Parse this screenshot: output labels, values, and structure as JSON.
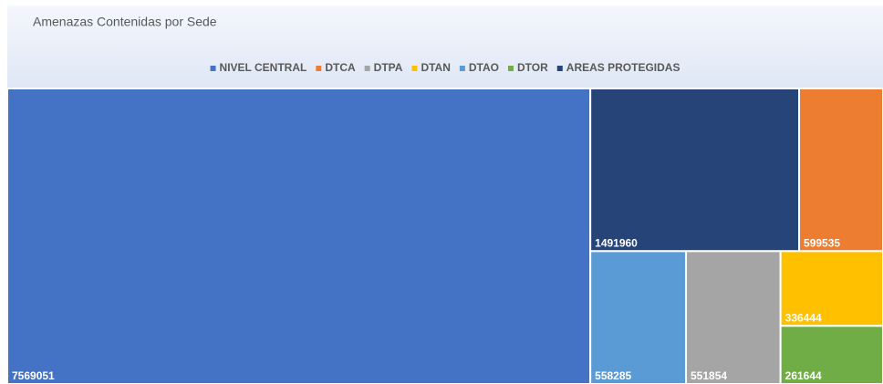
{
  "chart_data": {
    "type": "treemap",
    "title": "Amenazas Contenidas por Sede",
    "categories": [
      "NIVEL CENTRAL",
      "DTCA",
      "DTPA",
      "DTAN",
      "DTAO",
      "DTOR",
      "AREAS PROTEGIDAS"
    ],
    "values": [
      7569051,
      599535,
      551854,
      336444,
      558285,
      261644,
      1491960
    ],
    "colors": [
      "#4472c4",
      "#ed7d31",
      "#a5a5a5",
      "#ffc000",
      "#5b9bd5",
      "#70ad47",
      "#264478"
    ],
    "legend": "top"
  }
}
